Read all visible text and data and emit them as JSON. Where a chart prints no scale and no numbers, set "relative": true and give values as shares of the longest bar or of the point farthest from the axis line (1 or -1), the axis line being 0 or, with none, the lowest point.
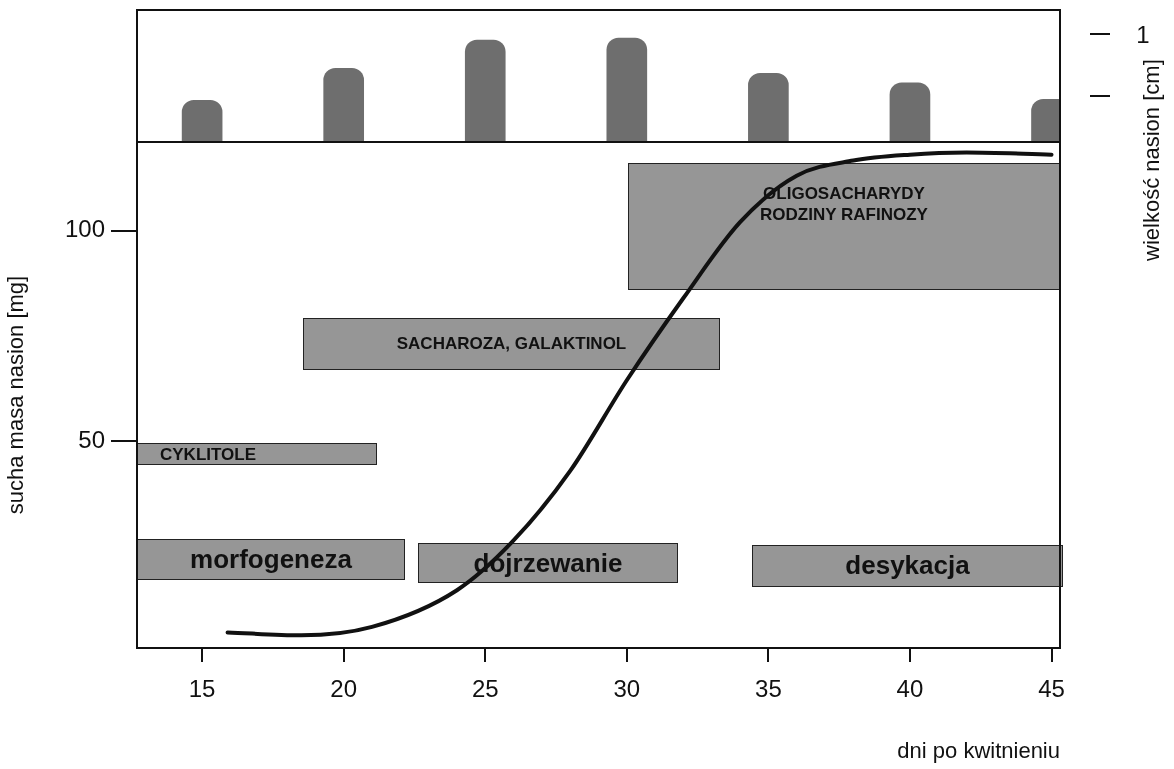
{
  "chart_data": [
    {
      "type": "bar",
      "x": [
        15,
        20,
        25,
        30,
        35,
        40,
        45
      ],
      "xlim": [
        12.7,
        45.3
      ],
      "relative": true,
      "grid": false,
      "series": [
        {
          "color": "#6e6e6e",
          "values": [
            0.4,
            0.71,
            0.98,
            1,
            0.66,
            0.57,
            0.41
          ]
        }
      ],
      "annotations": [
        "wielkość nasion [cm]",
        "1"
      ]
    },
    {
      "type": "line",
      "xlabel": "dni po kwitnieniu",
      "ylabel": "sucha masa nasion [mg]",
      "xlim": [
        12.7,
        45.3
      ],
      "xticks": [
        15,
        20,
        25,
        30,
        35,
        40,
        45
      ],
      "ylim": [
        1,
        121
      ],
      "yticks": [
        50,
        100
      ],
      "grid": false,
      "series": [
        {
          "color": "#111111",
          "x": [
            15.9,
            18.5,
            21,
            24,
            26,
            28,
            30,
            32,
            34,
            36,
            38,
            40,
            42,
            45
          ],
          "values": [
            4.7,
            4,
            6,
            14.7,
            26.5,
            43,
            64.5,
            84,
            102,
            113,
            116.6,
            118,
            118.5,
            118
          ]
        }
      ],
      "annotations": [
        "OLIGOSACHARYDY\nRODZINY RAFINOZY",
        "SACHAROZA, GALAKTINOL",
        "CYKLITOLE",
        "morfogeneza",
        "dojrzewanie",
        "desykacja"
      ]
    }
  ]
}
